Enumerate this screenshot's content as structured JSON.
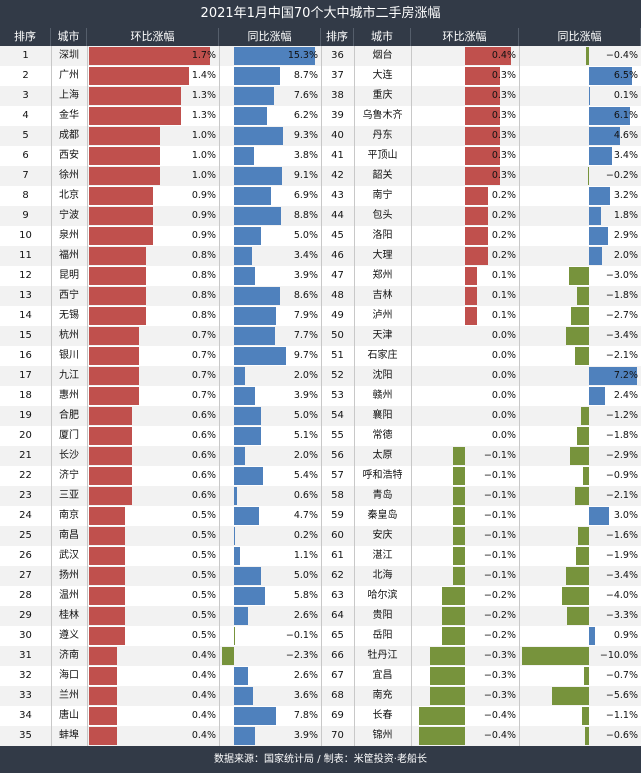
{
  "chart_data": {
    "type": "table",
    "title": "2021年1月中国70个大中城市二手房涨幅",
    "columns": [
      "排序",
      "城市",
      "环比涨幅",
      "同比涨幅"
    ],
    "colors": {
      "positive_mom": "#c0504d",
      "positive_yoy": "#4f81bd",
      "negative": "#77933c",
      "header": "#323a47"
    },
    "rows": [
      {
        "rank": "1",
        "city": "深圳",
        "mom": 1.7,
        "mom_label": "1.7%",
        "yoy": 15.3,
        "yoy_label": "15.3%"
      },
      {
        "rank": "2",
        "city": "广州",
        "mom": 1.4,
        "mom_label": "1.4%",
        "yoy": 8.7,
        "yoy_label": "8.7%"
      },
      {
        "rank": "3",
        "city": "上海",
        "mom": 1.3,
        "mom_label": "1.3%",
        "yoy": 7.6,
        "yoy_label": "7.6%"
      },
      {
        "rank": "4",
        "city": "金华",
        "mom": 1.3,
        "mom_label": "1.3%",
        "yoy": 6.2,
        "yoy_label": "6.2%"
      },
      {
        "rank": "5",
        "city": "成都",
        "mom": 1.0,
        "mom_label": "1.0%",
        "yoy": 9.3,
        "yoy_label": "9.3%"
      },
      {
        "rank": "6",
        "city": "西安",
        "mom": 1.0,
        "mom_label": "1.0%",
        "yoy": 3.8,
        "yoy_label": "3.8%"
      },
      {
        "rank": "7",
        "city": "徐州",
        "mom": 1.0,
        "mom_label": "1.0%",
        "yoy": 9.1,
        "yoy_label": "9.1%"
      },
      {
        "rank": "8",
        "city": "北京",
        "mom": 0.9,
        "mom_label": "0.9%",
        "yoy": 6.9,
        "yoy_label": "6.9%"
      },
      {
        "rank": "9",
        "city": "宁波",
        "mom": 0.9,
        "mom_label": "0.9%",
        "yoy": 8.8,
        "yoy_label": "8.8%"
      },
      {
        "rank": "10",
        "city": "泉州",
        "mom": 0.9,
        "mom_label": "0.9%",
        "yoy": 5.0,
        "yoy_label": "5.0%"
      },
      {
        "rank": "11",
        "city": "福州",
        "mom": 0.8,
        "mom_label": "0.8%",
        "yoy": 3.4,
        "yoy_label": "3.4%"
      },
      {
        "rank": "12",
        "city": "昆明",
        "mom": 0.8,
        "mom_label": "0.8%",
        "yoy": 3.9,
        "yoy_label": "3.9%"
      },
      {
        "rank": "13",
        "city": "西宁",
        "mom": 0.8,
        "mom_label": "0.8%",
        "yoy": 8.6,
        "yoy_label": "8.6%"
      },
      {
        "rank": "14",
        "city": "无锡",
        "mom": 0.8,
        "mom_label": "0.8%",
        "yoy": 7.9,
        "yoy_label": "7.9%"
      },
      {
        "rank": "15",
        "city": "杭州",
        "mom": 0.7,
        "mom_label": "0.7%",
        "yoy": 7.7,
        "yoy_label": "7.7%"
      },
      {
        "rank": "16",
        "city": "银川",
        "mom": 0.7,
        "mom_label": "0.7%",
        "yoy": 9.7,
        "yoy_label": "9.7%"
      },
      {
        "rank": "17",
        "city": "九江",
        "mom": 0.7,
        "mom_label": "0.7%",
        "yoy": 2.0,
        "yoy_label": "2.0%"
      },
      {
        "rank": "18",
        "city": "惠州",
        "mom": 0.7,
        "mom_label": "0.7%",
        "yoy": 3.9,
        "yoy_label": "3.9%"
      },
      {
        "rank": "19",
        "city": "合肥",
        "mom": 0.6,
        "mom_label": "0.6%",
        "yoy": 5.0,
        "yoy_label": "5.0%"
      },
      {
        "rank": "20",
        "city": "厦门",
        "mom": 0.6,
        "mom_label": "0.6%",
        "yoy": 5.1,
        "yoy_label": "5.1%"
      },
      {
        "rank": "21",
        "city": "长沙",
        "mom": 0.6,
        "mom_label": "0.6%",
        "yoy": 2.0,
        "yoy_label": "2.0%"
      },
      {
        "rank": "22",
        "city": "济宁",
        "mom": 0.6,
        "mom_label": "0.6%",
        "yoy": 5.4,
        "yoy_label": "5.4%"
      },
      {
        "rank": "23",
        "city": "三亚",
        "mom": 0.6,
        "mom_label": "0.6%",
        "yoy": 0.6,
        "yoy_label": "0.6%"
      },
      {
        "rank": "24",
        "city": "南京",
        "mom": 0.5,
        "mom_label": "0.5%",
        "yoy": 4.7,
        "yoy_label": "4.7%"
      },
      {
        "rank": "25",
        "city": "南昌",
        "mom": 0.5,
        "mom_label": "0.5%",
        "yoy": 0.2,
        "yoy_label": "0.2%"
      },
      {
        "rank": "26",
        "city": "武汉",
        "mom": 0.5,
        "mom_label": "0.5%",
        "yoy": 1.1,
        "yoy_label": "1.1%"
      },
      {
        "rank": "27",
        "city": "扬州",
        "mom": 0.5,
        "mom_label": "0.5%",
        "yoy": 5.0,
        "yoy_label": "5.0%"
      },
      {
        "rank": "28",
        "city": "温州",
        "mom": 0.5,
        "mom_label": "0.5%",
        "yoy": 5.8,
        "yoy_label": "5.8%"
      },
      {
        "rank": "29",
        "city": "桂林",
        "mom": 0.5,
        "mom_label": "0.5%",
        "yoy": 2.6,
        "yoy_label": "2.6%"
      },
      {
        "rank": "30",
        "city": "遵义",
        "mom": 0.5,
        "mom_label": "0.5%",
        "yoy": -0.1,
        "yoy_label": "−0.1%"
      },
      {
        "rank": "31",
        "city": "济南",
        "mom": 0.4,
        "mom_label": "0.4%",
        "yoy": -2.3,
        "yoy_label": "−2.3%"
      },
      {
        "rank": "32",
        "city": "海口",
        "mom": 0.4,
        "mom_label": "0.4%",
        "yoy": 2.6,
        "yoy_label": "2.6%"
      },
      {
        "rank": "33",
        "city": "兰州",
        "mom": 0.4,
        "mom_label": "0.4%",
        "yoy": 3.6,
        "yoy_label": "3.6%"
      },
      {
        "rank": "34",
        "city": "唐山",
        "mom": 0.4,
        "mom_label": "0.4%",
        "yoy": 7.8,
        "yoy_label": "7.8%"
      },
      {
        "rank": "35",
        "city": "蚌埠",
        "mom": 0.4,
        "mom_label": "0.4%",
        "yoy": 3.9,
        "yoy_label": "3.9%"
      },
      {
        "rank": "36",
        "city": "烟台",
        "mom": 0.4,
        "mom_label": "0.4%",
        "yoy": -0.4,
        "yoy_label": "−0.4%"
      },
      {
        "rank": "37",
        "city": "大连",
        "mom": 0.3,
        "mom_label": "0.3%",
        "yoy": 6.5,
        "yoy_label": "6.5%"
      },
      {
        "rank": "38",
        "city": "重庆",
        "mom": 0.3,
        "mom_label": "0.3%",
        "yoy": 0.1,
        "yoy_label": "0.1%"
      },
      {
        "rank": "39",
        "city": "乌鲁木齐",
        "mom": 0.3,
        "mom_label": "0.3%",
        "yoy": 6.1,
        "yoy_label": "6.1%"
      },
      {
        "rank": "40",
        "city": "丹东",
        "mom": 0.3,
        "mom_label": "0.3%",
        "yoy": 4.6,
        "yoy_label": "4.6%"
      },
      {
        "rank": "41",
        "city": "平顶山",
        "mom": 0.3,
        "mom_label": "0.3%",
        "yoy": 3.4,
        "yoy_label": "3.4%"
      },
      {
        "rank": "42",
        "city": "韶关",
        "mom": 0.3,
        "mom_label": "0.3%",
        "yoy": -0.2,
        "yoy_label": "−0.2%"
      },
      {
        "rank": "43",
        "city": "南宁",
        "mom": 0.2,
        "mom_label": "0.2%",
        "yoy": 3.2,
        "yoy_label": "3.2%"
      },
      {
        "rank": "44",
        "city": "包头",
        "mom": 0.2,
        "mom_label": "0.2%",
        "yoy": 1.8,
        "yoy_label": "1.8%"
      },
      {
        "rank": "45",
        "city": "洛阳",
        "mom": 0.2,
        "mom_label": "0.2%",
        "yoy": 2.9,
        "yoy_label": "2.9%"
      },
      {
        "rank": "46",
        "city": "大理",
        "mom": 0.2,
        "mom_label": "0.2%",
        "yoy": 2.0,
        "yoy_label": "2.0%"
      },
      {
        "rank": "47",
        "city": "郑州",
        "mom": 0.1,
        "mom_label": "0.1%",
        "yoy": -3.0,
        "yoy_label": "−3.0%"
      },
      {
        "rank": "48",
        "city": "吉林",
        "mom": 0.1,
        "mom_label": "0.1%",
        "yoy": -1.8,
        "yoy_label": "−1.8%"
      },
      {
        "rank": "49",
        "city": "泸州",
        "mom": 0.1,
        "mom_label": "0.1%",
        "yoy": -2.7,
        "yoy_label": "−2.7%"
      },
      {
        "rank": "50",
        "city": "天津",
        "mom": 0.0,
        "mom_label": "0.0%",
        "yoy": -3.4,
        "yoy_label": "−3.4%"
      },
      {
        "rank": "51",
        "city": "石家庄",
        "mom": 0.0,
        "mom_label": "0.0%",
        "yoy": -2.1,
        "yoy_label": "−2.1%"
      },
      {
        "rank": "52",
        "city": "沈阳",
        "mom": 0.0,
        "mom_label": "0.0%",
        "yoy": 7.2,
        "yoy_label": "7.2%"
      },
      {
        "rank": "53",
        "city": "赣州",
        "mom": 0.0,
        "mom_label": "0.0%",
        "yoy": 2.4,
        "yoy_label": "2.4%"
      },
      {
        "rank": "54",
        "city": "襄阳",
        "mom": 0.0,
        "mom_label": "0.0%",
        "yoy": -1.2,
        "yoy_label": "−1.2%"
      },
      {
        "rank": "55",
        "city": "常德",
        "mom": 0.0,
        "mom_label": "0.0%",
        "yoy": -1.8,
        "yoy_label": "−1.8%"
      },
      {
        "rank": "56",
        "city": "太原",
        "mom": -0.1,
        "mom_label": "−0.1%",
        "yoy": -2.9,
        "yoy_label": "−2.9%"
      },
      {
        "rank": "57",
        "city": "呼和浩特",
        "mom": -0.1,
        "mom_label": "−0.1%",
        "yoy": -0.9,
        "yoy_label": "−0.9%"
      },
      {
        "rank": "58",
        "city": "青岛",
        "mom": -0.1,
        "mom_label": "−0.1%",
        "yoy": -2.1,
        "yoy_label": "−2.1%"
      },
      {
        "rank": "59",
        "city": "秦皇岛",
        "mom": -0.1,
        "mom_label": "−0.1%",
        "yoy": 3.0,
        "yoy_label": "3.0%"
      },
      {
        "rank": "60",
        "city": "安庆",
        "mom": -0.1,
        "mom_label": "−0.1%",
        "yoy": -1.6,
        "yoy_label": "−1.6%"
      },
      {
        "rank": "61",
        "city": "湛江",
        "mom": -0.1,
        "mom_label": "−0.1%",
        "yoy": -1.9,
        "yoy_label": "−1.9%"
      },
      {
        "rank": "62",
        "city": "北海",
        "mom": -0.1,
        "mom_label": "−0.1%",
        "yoy": -3.4,
        "yoy_label": "−3.4%"
      },
      {
        "rank": "63",
        "city": "哈尔滨",
        "mom": -0.2,
        "mom_label": "−0.2%",
        "yoy": -4.0,
        "yoy_label": "−4.0%"
      },
      {
        "rank": "64",
        "city": "贵阳",
        "mom": -0.2,
        "mom_label": "−0.2%",
        "yoy": -3.3,
        "yoy_label": "−3.3%"
      },
      {
        "rank": "65",
        "city": "岳阳",
        "mom": -0.2,
        "mom_label": "−0.2%",
        "yoy": 0.9,
        "yoy_label": "0.9%"
      },
      {
        "rank": "66",
        "city": "牡丹江",
        "mom": -0.3,
        "mom_label": "−0.3%",
        "yoy": -10.0,
        "yoy_label": "−10.0%"
      },
      {
        "rank": "67",
        "city": "宜昌",
        "mom": -0.3,
        "mom_label": "−0.3%",
        "yoy": -0.7,
        "yoy_label": "−0.7%"
      },
      {
        "rank": "68",
        "city": "南充",
        "mom": -0.3,
        "mom_label": "−0.3%",
        "yoy": -5.6,
        "yoy_label": "−5.6%"
      },
      {
        "rank": "69",
        "city": "长春",
        "mom": -0.4,
        "mom_label": "−0.4%",
        "yoy": -1.1,
        "yoy_label": "−1.1%"
      },
      {
        "rank": "70",
        "city": "锦州",
        "mom": -0.4,
        "mom_label": "−0.4%",
        "yoy": -0.6,
        "yoy_label": "−0.6%"
      }
    ]
  },
  "footer": "数据来源：国家统计局 / 制表：米筐投资·老船长"
}
